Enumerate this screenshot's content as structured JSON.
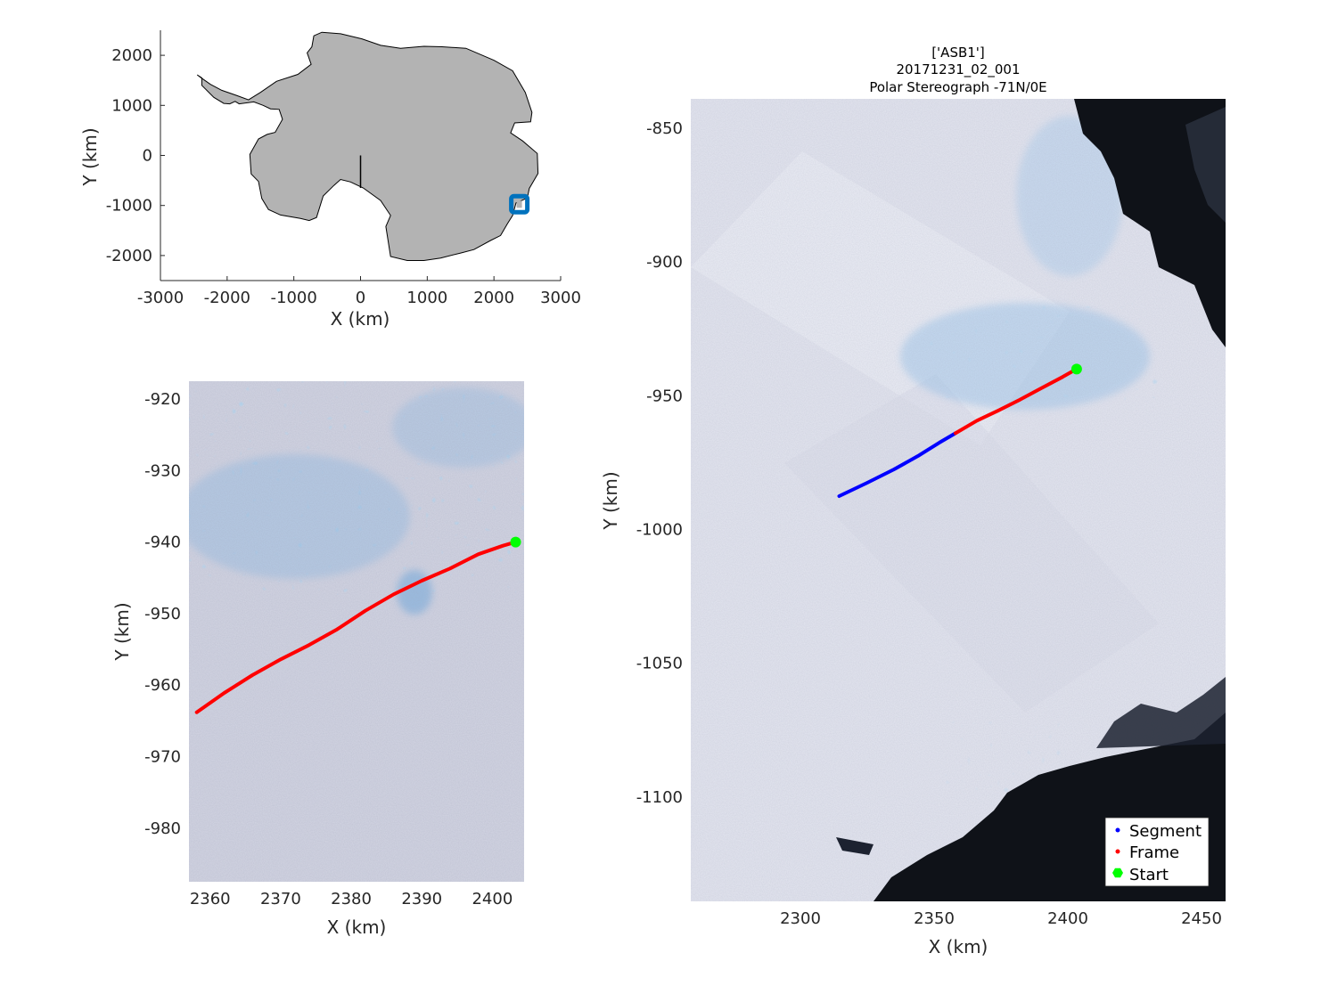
{
  "chart_data": [
    {
      "type": "map",
      "id": "overview",
      "title": [],
      "xlabel": "X (km)",
      "ylabel": "Y (km)",
      "xlim": [
        -3000,
        3000
      ],
      "ylim": [
        -2500,
        2500
      ],
      "xticks": [
        -3000,
        -2000,
        -1000,
        0,
        1000,
        2000,
        3000
      ],
      "yticks": [
        -2000,
        -1000,
        0,
        1000,
        2000
      ],
      "xtick_labels": [
        "-3000",
        "-2000",
        "-1000",
        "0",
        "1000",
        "2000",
        "3000"
      ],
      "ytick_labels": [
        "-2000",
        "-1000",
        "0",
        "1000",
        "2000"
      ],
      "land_color": "#b3b3b3",
      "meridian_line": {
        "x": [
          0,
          0
        ],
        "y": [
          0,
          -650
        ],
        "color": "#000000"
      },
      "location_marker": {
        "x": 2380,
        "y": -975,
        "color": "#0072bd"
      },
      "coastline": [
        [
          -2450,
          1610
        ],
        [
          -2380,
          1550
        ],
        [
          -2380,
          1400
        ],
        [
          -2200,
          1160
        ],
        [
          -2050,
          1040
        ],
        [
          -1960,
          1030
        ],
        [
          -1880,
          1080
        ],
        [
          -1820,
          1030
        ],
        [
          -1600,
          1070
        ],
        [
          -1460,
          1000
        ],
        [
          -1350,
          930
        ],
        [
          -1220,
          920
        ],
        [
          -1170,
          720
        ],
        [
          -1280,
          460
        ],
        [
          -1400,
          420
        ],
        [
          -1530,
          330
        ],
        [
          -1660,
          20
        ],
        [
          -1640,
          -370
        ],
        [
          -1530,
          -520
        ],
        [
          -1480,
          -860
        ],
        [
          -1380,
          -1080
        ],
        [
          -1200,
          -1190
        ],
        [
          -900,
          -1260
        ],
        [
          -770,
          -1300
        ],
        [
          -660,
          -1240
        ],
        [
          -560,
          -810
        ],
        [
          -400,
          -600
        ],
        [
          -300,
          -480
        ],
        [
          -150,
          -530
        ],
        [
          40,
          -650
        ],
        [
          300,
          -900
        ],
        [
          450,
          -1200
        ],
        [
          380,
          -1420
        ],
        [
          450,
          -2020
        ],
        [
          700,
          -2100
        ],
        [
          950,
          -2100
        ],
        [
          1200,
          -2050
        ],
        [
          1500,
          -1950
        ],
        [
          1700,
          -1880
        ],
        [
          1950,
          -1700
        ],
        [
          2100,
          -1600
        ],
        [
          2200,
          -1370
        ],
        [
          2280,
          -1200
        ],
        [
          2330,
          -950
        ],
        [
          2500,
          -850
        ],
        [
          2530,
          -660
        ],
        [
          2660,
          -360
        ],
        [
          2650,
          40
        ],
        [
          2430,
          290
        ],
        [
          2250,
          450
        ],
        [
          2310,
          650
        ],
        [
          2550,
          670
        ],
        [
          2570,
          860
        ],
        [
          2470,
          1260
        ],
        [
          2280,
          1690
        ],
        [
          2000,
          1900
        ],
        [
          1580,
          2140
        ],
        [
          1220,
          2170
        ],
        [
          950,
          2180
        ],
        [
          600,
          2140
        ],
        [
          300,
          2200
        ],
        [
          20,
          2330
        ],
        [
          -300,
          2430
        ],
        [
          -580,
          2460
        ],
        [
          -700,
          2390
        ],
        [
          -730,
          2170
        ],
        [
          -800,
          2050
        ],
        [
          -740,
          1820
        ],
        [
          -940,
          1620
        ],
        [
          -1260,
          1480
        ],
        [
          -1500,
          1260
        ],
        [
          -1680,
          1110
        ],
        [
          -1860,
          1200
        ],
        [
          -2080,
          1300
        ],
        [
          -2250,
          1420
        ],
        [
          -2400,
          1560
        ]
      ]
    },
    {
      "type": "line",
      "id": "frame-zoom",
      "title": [],
      "xlabel": "X (km)",
      "ylabel": "Y (km)",
      "xlim": [
        2357,
        2404.5
      ],
      "ylim": [
        -987.5,
        -917.5
      ],
      "xticks": [
        2360,
        2370,
        2380,
        2390,
        2400
      ],
      "yticks": [
        -980,
        -970,
        -960,
        -950,
        -940,
        -930,
        -920
      ],
      "xtick_labels": [
        "2360",
        "2370",
        "2380",
        "2390",
        "2400"
      ],
      "ytick_labels": [
        "-980",
        "-970",
        "-960",
        "-950",
        "-940",
        "-930",
        "-920"
      ],
      "series": [
        {
          "name": "Frame",
          "color": "#ff0000",
          "x": [
            2358.1,
            2362,
            2366,
            2370,
            2374,
            2378,
            2382,
            2386,
            2390,
            2394,
            2398,
            2401.5,
            2403.3
          ],
          "y": [
            -963.8,
            -961.1,
            -958.6,
            -956.4,
            -954.4,
            -952.2,
            -949.6,
            -947.3,
            -945.4,
            -943.7,
            -941.7,
            -940.5,
            -940.0
          ]
        }
      ],
      "start": {
        "x": 2403.3,
        "y": -940.0,
        "color": "#00ff00"
      }
    },
    {
      "type": "line",
      "id": "segment-map",
      "title": [
        "['ASB1']",
        "20171231_02_001",
        "Polar Stereograph -71N/0E"
      ],
      "xlabel": "X (km)",
      "ylabel": "Y (km)",
      "xlim": [
        2259,
        2459
      ],
      "ylim": [
        -1139,
        -839
      ],
      "xticks": [
        2300,
        2350,
        2400,
        2450
      ],
      "yticks": [
        -1100,
        -1050,
        -1000,
        -950,
        -900,
        -850
      ],
      "xtick_labels": [
        "2300",
        "2350",
        "2400",
        "2450"
      ],
      "ytick_labels": [
        "-1100",
        "-1050",
        "-1000",
        "-950",
        "-900",
        "-850"
      ],
      "series": [
        {
          "name": "Segment",
          "color": "#0000ff",
          "x": [
            2314.5,
            2325,
            2335,
            2344,
            2352,
            2358
          ],
          "y": [
            -987.5,
            -982.5,
            -977.5,
            -972.5,
            -967.5,
            -964.0
          ]
        },
        {
          "name": "Frame",
          "color": "#ff0000",
          "x": [
            2358,
            2366,
            2374,
            2382,
            2390,
            2398,
            2403.3
          ],
          "y": [
            -964.0,
            -959.3,
            -955.5,
            -951.5,
            -947.2,
            -943.0,
            -940.0
          ]
        }
      ],
      "start": {
        "x": 2403.3,
        "y": -940.0,
        "color": "#00ff00"
      },
      "legend": {
        "placement": "bottom-right",
        "entries": [
          {
            "label": "Segment",
            "color": "#0000ff",
            "marker": "dot"
          },
          {
            "label": "Frame",
            "color": "#ff0000",
            "marker": "dot"
          },
          {
            "label": "Start",
            "color": "#00ff00",
            "marker": "hexagon"
          }
        ]
      }
    }
  ]
}
